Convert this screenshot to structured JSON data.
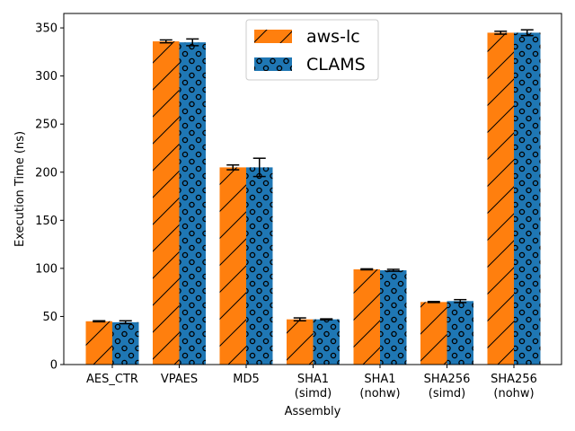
{
  "chart_data": {
    "type": "bar",
    "xlabel": "Assembly",
    "ylabel": "Execution Time (ns)",
    "ylim": [
      0,
      365
    ],
    "yticks": [
      0,
      50,
      100,
      150,
      200,
      250,
      300,
      350
    ],
    "categories": [
      [
        "AES_CTR"
      ],
      [
        "VPAES"
      ],
      [
        "MD5"
      ],
      [
        "SHA1",
        "(simd)"
      ],
      [
        "SHA1",
        "(nohw)"
      ],
      [
        "SHA256",
        "(simd)"
      ],
      [
        "SHA256",
        "(nohw)"
      ]
    ],
    "series": [
      {
        "name": "aws-lc",
        "color": "#ff7f0e",
        "hatch": "diagonal",
        "values": [
          45,
          336,
          205,
          47,
          99,
          65,
          345
        ],
        "errors": [
          0.5,
          1.5,
          2.5,
          1.5,
          0.5,
          0.5,
          1.5
        ]
      },
      {
        "name": "CLAMS",
        "color": "#1f77b4",
        "hatch": "circles",
        "values": [
          44,
          335,
          205,
          47,
          98,
          66,
          345
        ],
        "errors": [
          1.5,
          3.5,
          9.5,
          0.5,
          1.0,
          1.5,
          3.0
        ]
      }
    ],
    "legend": "top-center",
    "grid": false
  }
}
